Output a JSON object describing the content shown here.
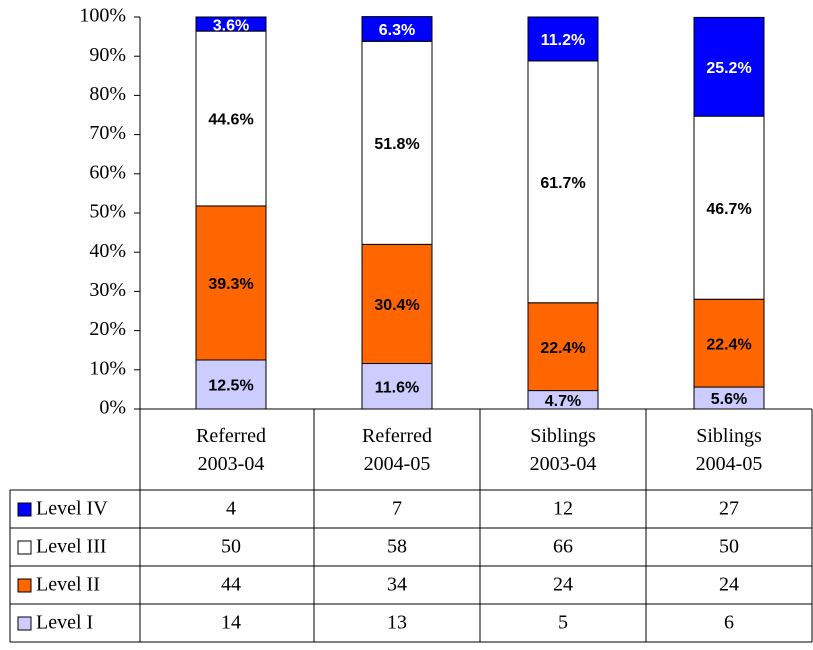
{
  "chart_data": {
    "type": "stacked_bar",
    "categories": [
      "Referred 2003-04",
      "Referred 2004-05",
      "Siblings 2003-04",
      "Siblings 2004-05"
    ],
    "ylim": [
      0,
      100
    ],
    "yticks": [
      {
        "value": 0,
        "label": "0%"
      },
      {
        "value": 10,
        "label": "10%"
      },
      {
        "value": 20,
        "label": "20%"
      },
      {
        "value": 30,
        "label": "30%"
      },
      {
        "value": 40,
        "label": "40%"
      },
      {
        "value": 50,
        "label": "50%"
      },
      {
        "value": 60,
        "label": "60%"
      },
      {
        "value": 70,
        "label": "70%"
      },
      {
        "value": 80,
        "label": "80%"
      },
      {
        "value": 90,
        "label": "90%"
      },
      {
        "value": 100,
        "label": "100%"
      }
    ],
    "series": [
      {
        "name": "Level I",
        "color": "#ccccff",
        "label_color": "#000000",
        "values": [
          12.5,
          11.6,
          4.7,
          5.6
        ],
        "value_labels": [
          "12.5%",
          "11.6%",
          "4.7%",
          "5.6%"
        ],
        "table_values": [
          14,
          13,
          5,
          6
        ]
      },
      {
        "name": "Level II",
        "color": "#ff6600",
        "label_color": "#000000",
        "values": [
          39.3,
          30.4,
          22.4,
          22.4
        ],
        "value_labels": [
          "39.3%",
          "30.4%",
          "22.4%",
          "22.4%"
        ],
        "table_values": [
          44,
          34,
          24,
          24
        ]
      },
      {
        "name": "Level III",
        "color": "#ffffff",
        "label_color": "#000000",
        "values": [
          44.6,
          51.8,
          61.7,
          46.7
        ],
        "value_labels": [
          "44.6%",
          "51.8%",
          "61.7%",
          "46.7%"
        ],
        "table_values": [
          50,
          58,
          66,
          50
        ]
      },
      {
        "name": "Level IV",
        "color": "#0000ff",
        "label_color": "#ffffff",
        "values": [
          3.6,
          6.3,
          11.2,
          25.2
        ],
        "value_labels": [
          "3.6%",
          "6.3%",
          "11.2%",
          "25.2%"
        ],
        "table_values": [
          4,
          7,
          12,
          27
        ]
      }
    ]
  }
}
